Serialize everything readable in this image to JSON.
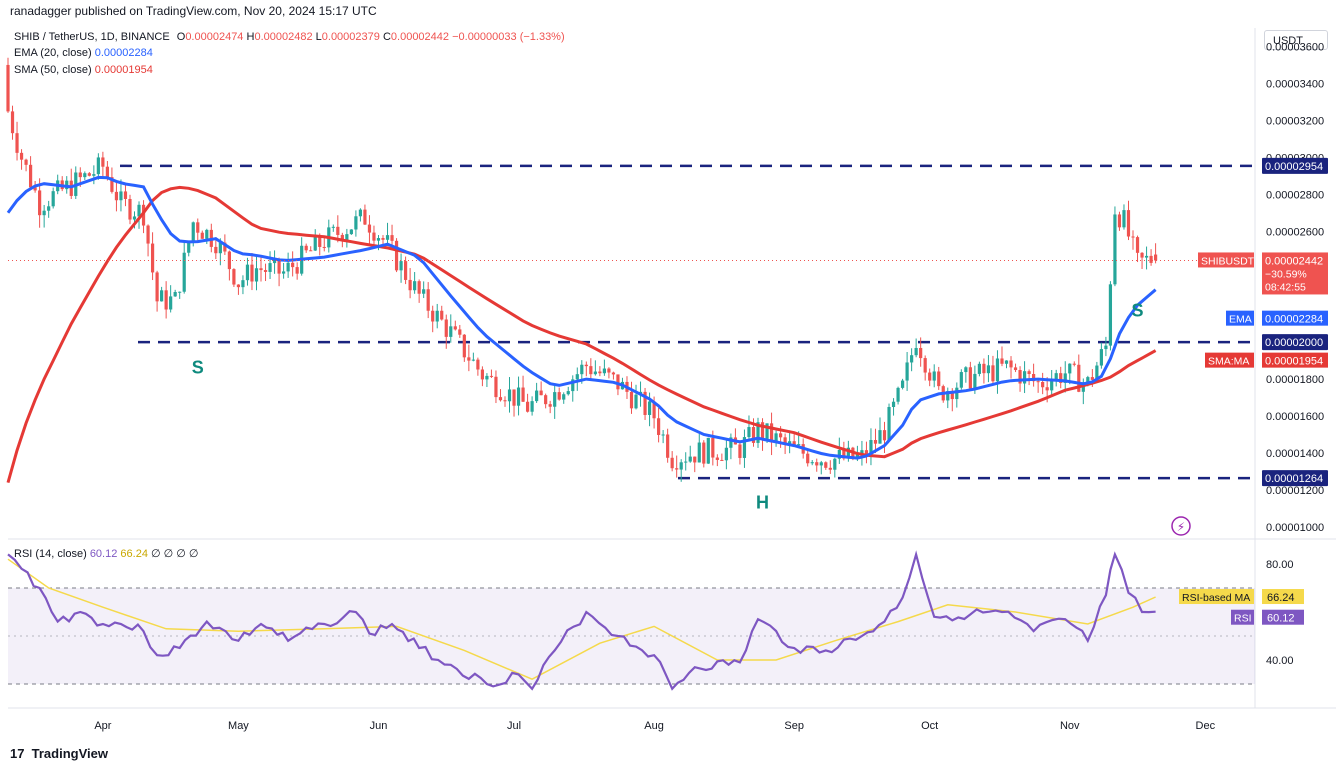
{
  "header": {
    "text": "ranadagger published on TradingView.com, Nov 20, 2024 15:17 UTC"
  },
  "legend": {
    "symbol": "SHIB / TetherUS, 1D, BINANCE",
    "o_label": "O",
    "o_val": "0.00002474",
    "h_label": "H",
    "h_val": "0.00002482",
    "l_label": "L",
    "l_val": "0.00002379",
    "c_label": "C",
    "c_val": "0.00002442",
    "chg": "−0.00000033 (−1.33%)",
    "ema_label": "EMA (20, close)",
    "ema_val": "0.00002284",
    "sma_label": "SMA (50, close)",
    "sma_val": "0.00001954",
    "rsi_label": "RSI (14, close)",
    "rsi_val": "60.12",
    "rsi_ma_val": "66.24",
    "rsi_extra": "∅ ∅ ∅ ∅"
  },
  "currency_button": "USDT",
  "footer": {
    "brand": "TradingView",
    "logo": "17"
  },
  "colors": {
    "up": "#26a69a",
    "down": "#ef5350",
    "ema": "#2962ff",
    "sma": "#e53935",
    "rsi": "#7e57c2",
    "rsi_ma": "#f5d94b",
    "level": "#1a237e"
  },
  "chart_data": {
    "type": "candlestick",
    "price_axis": {
      "ticks": [
        "0.00003600",
        "0.00003400",
        "0.00003200",
        "0.00003000",
        "0.00002800",
        "0.00002600",
        "0.00001800",
        "0.00001600",
        "0.00001400",
        "0.00001200",
        "0.00001000"
      ],
      "range": [
        9.4e-06,
        3.7e-05
      ]
    },
    "time_axis": {
      "ticks": [
        "Apr",
        "May",
        "Jun",
        "Jul",
        "Aug",
        "Sep",
        "Oct",
        "Nov",
        "Dec"
      ],
      "range": [
        "2024-03-11",
        "2024-12-12"
      ]
    },
    "horizontal_levels": [
      {
        "value": 2.954e-05,
        "label": "0.00002954"
      },
      {
        "value": 2e-05,
        "label": "0.00002000"
      },
      {
        "value": 1.264e-05,
        "label": "0.00001264"
      }
    ],
    "price_tags": {
      "symbol": "SHIBUSDT",
      "last": "0.00002442",
      "change": "−30.59%",
      "countdown": "08:42:55",
      "ema": "EMA",
      "ema_val": "0.00002284",
      "sma": "SMA:MA",
      "sma_val": "0.00001954"
    },
    "annotations": [
      {
        "text": "S",
        "date": "2024-04-22",
        "price": 1.83e-05
      },
      {
        "text": "H",
        "date": "2024-08-25",
        "price": 1.1e-05
      },
      {
        "text": "S",
        "date": "2024-11-16",
        "price": 2.14e-05
      }
    ],
    "anchors": [
      [
        "2024-03-11",
        35,
        30,
        "ema",
        27.0,
        "sma",
        12.4
      ],
      [
        "2024-03-14",
        33,
        27,
        "ema",
        28.0,
        "sma",
        15.0
      ],
      [
        "2024-03-18",
        30,
        25,
        "ema",
        28.6,
        "sma",
        17.5
      ],
      [
        "2024-03-25",
        29,
        28,
        "ema",
        28.4,
        "sma",
        21.0
      ],
      [
        "2024-04-01",
        30,
        29,
        "ema",
        29.0,
        "sma",
        24.0
      ],
      [
        "2024-04-05",
        27,
        28,
        "ema",
        28.6,
        "sma",
        25.5
      ],
      [
        "2024-04-10",
        26.5,
        27.5,
        "ema",
        28.4,
        "sma",
        27.0
      ],
      [
        "2024-04-13",
        21.5,
        23,
        "ema",
        27.0,
        "sma",
        28.0
      ],
      [
        "2024-04-17",
        22,
        22.5,
        "ema",
        25.5,
        "sma",
        28.4
      ],
      [
        "2024-04-21",
        26,
        27,
        "ema",
        25.4,
        "sma",
        28.3
      ],
      [
        "2024-04-26",
        25,
        26,
        "ema",
        25.6,
        "sma",
        27.8
      ],
      [
        "2024-05-01",
        22.5,
        24,
        "ema",
        24.8,
        "sma",
        26.9
      ],
      [
        "2024-05-05",
        23,
        25,
        "ema",
        24.7,
        "sma",
        26.2
      ],
      [
        "2024-05-11",
        23.5,
        24,
        "ema",
        24.4,
        "sma",
        25.9
      ],
      [
        "2024-05-20",
        25,
        26,
        "ema",
        24.6,
        "sma",
        25.7
      ],
      [
        "2024-05-29",
        27.5,
        26,
        "ema",
        25.0,
        "sma",
        25.3
      ],
      [
        "2024-06-03",
        25,
        25.5,
        "ema",
        25.3,
        "sma",
        25.1
      ],
      [
        "2024-06-10",
        22,
        23,
        "ema",
        24.6,
        "sma",
        24.7
      ],
      [
        "2024-06-17",
        20,
        21,
        "ema",
        22.5,
        "sma",
        23.6
      ],
      [
        "2024-06-24",
        18,
        18.5,
        "ema",
        20.5,
        "sma",
        22.5
      ],
      [
        "2024-07-04",
        16,
        17,
        "ema",
        18.5,
        "sma",
        21.0
      ],
      [
        "2024-07-10",
        17,
        17.5,
        "ema",
        17.6,
        "sma",
        20.4
      ],
      [
        "2024-07-17",
        19,
        18.5,
        "ema",
        18.0,
        "sma",
        19.9
      ],
      [
        "2024-07-24",
        18,
        17.5,
        "ema",
        17.8,
        "sma",
        19.0
      ],
      [
        "2024-08-01",
        16.5,
        15.5,
        "ema",
        16.8,
        "sma",
        17.8
      ],
      [
        "2024-08-05",
        13.5,
        14,
        "ema",
        15.8,
        "sma",
        17.3
      ],
      [
        "2024-08-12",
        14,
        14.2,
        "ema",
        15.0,
        "sma",
        16.5
      ],
      [
        "2024-08-20",
        14,
        14.5,
        "ema",
        14.6,
        "sma",
        15.8
      ],
      [
        "2024-08-24",
        15.5,
        15,
        "ema",
        14.8,
        "sma",
        15.5
      ],
      [
        "2024-09-01",
        14,
        14.3,
        "ema",
        14.4,
        "sma",
        15.1
      ],
      [
        "2024-09-08",
        13.5,
        13.8,
        "ema",
        13.9,
        "sma",
        14.5
      ],
      [
        "2024-09-16",
        13.5,
        14,
        "ema",
        13.7,
        "sma",
        13.9
      ],
      [
        "2024-09-21",
        15,
        15.5,
        "ema",
        14.4,
        "sma",
        13.8
      ],
      [
        "2024-09-25",
        17,
        18,
        "ema",
        15.5,
        "sma",
        14.2
      ],
      [
        "2024-09-28",
        20.5,
        20,
        "ema",
        16.8,
        "sma",
        14.7
      ],
      [
        "2024-10-03",
        17.5,
        17,
        "ema",
        17.2,
        "sma",
        15.1
      ],
      [
        "2024-10-10",
        18,
        18.2,
        "ema",
        17.4,
        "sma",
        15.6
      ],
      [
        "2024-10-18",
        18.5,
        18.8,
        "ema",
        17.9,
        "sma",
        16.2
      ],
      [
        "2024-10-25",
        18,
        17.5,
        "ema",
        18.0,
        "sma",
        16.8
      ],
      [
        "2024-10-31",
        18.5,
        18.2,
        "ema",
        17.9,
        "sma",
        17.4
      ],
      [
        "2024-11-05",
        17.5,
        18,
        "ema",
        17.7,
        "sma",
        17.7
      ],
      [
        "2024-11-09",
        19,
        20.5,
        "ema",
        18.3,
        "sma",
        18.0
      ],
      [
        "2024-11-11",
        26,
        28.5,
        "ema",
        19.9,
        "sma",
        18.2
      ],
      [
        "2024-11-13",
        27,
        26,
        "ema",
        21.0,
        "sma",
        18.6
      ],
      [
        "2024-11-16",
        24.5,
        24,
        "ema",
        22.0,
        "sma",
        19.0
      ],
      [
        "2024-11-20",
        24.74,
        24.42,
        "ema",
        22.84,
        "sma",
        19.54
      ]
    ],
    "rsi": {
      "range": [
        20,
        90
      ],
      "ticks": [
        "80.00",
        "40.00"
      ],
      "band": [
        30,
        70
      ],
      "points": [
        [
          "2024-03-11",
          84
        ],
        [
          "2024-03-14",
          78
        ],
        [
          "2024-03-18",
          70
        ],
        [
          "2024-03-22",
          56
        ],
        [
          "2024-03-27",
          60
        ],
        [
          "2024-04-01",
          55
        ],
        [
          "2024-04-05",
          55
        ],
        [
          "2024-04-10",
          52
        ],
        [
          "2024-04-13",
          42
        ],
        [
          "2024-04-18",
          45
        ],
        [
          "2024-04-24",
          56
        ],
        [
          "2024-05-01",
          48
        ],
        [
          "2024-05-06",
          55
        ],
        [
          "2024-05-12",
          48
        ],
        [
          "2024-05-20",
          55
        ],
        [
          "2024-05-27",
          60
        ],
        [
          "2024-05-30",
          51
        ],
        [
          "2024-06-04",
          55
        ],
        [
          "2024-06-10",
          45
        ],
        [
          "2024-06-17",
          38
        ],
        [
          "2024-06-25",
          30
        ],
        [
          "2024-07-02",
          34
        ],
        [
          "2024-07-05",
          28
        ],
        [
          "2024-07-10",
          44
        ],
        [
          "2024-07-17",
          60
        ],
        [
          "2024-07-24",
          50
        ],
        [
          "2024-08-01",
          42
        ],
        [
          "2024-08-05",
          28
        ],
        [
          "2024-08-10",
          37
        ],
        [
          "2024-08-20",
          39
        ],
        [
          "2024-08-24",
          57
        ],
        [
          "2024-09-01",
          45
        ],
        [
          "2024-09-08",
          44
        ],
        [
          "2024-09-16",
          50
        ],
        [
          "2024-09-21",
          56
        ],
        [
          "2024-09-25",
          66
        ],
        [
          "2024-09-28",
          84
        ],
        [
          "2024-10-02",
          58
        ],
        [
          "2024-10-10",
          59
        ],
        [
          "2024-10-17",
          60
        ],
        [
          "2024-10-24",
          52
        ],
        [
          "2024-10-31",
          57
        ],
        [
          "2024-11-05",
          48
        ],
        [
          "2024-11-09",
          67
        ],
        [
          "2024-11-11",
          84
        ],
        [
          "2024-11-14",
          68
        ],
        [
          "2024-11-17",
          60
        ],
        [
          "2024-11-20",
          60.12
        ]
      ],
      "ma_points": [
        [
          "2024-03-11",
          82
        ],
        [
          "2024-03-20",
          70
        ],
        [
          "2024-04-01",
          62
        ],
        [
          "2024-04-15",
          53
        ],
        [
          "2024-05-01",
          52
        ],
        [
          "2024-05-20",
          53
        ],
        [
          "2024-06-05",
          54
        ],
        [
          "2024-06-20",
          44
        ],
        [
          "2024-07-05",
          32
        ],
        [
          "2024-07-20",
          47
        ],
        [
          "2024-08-01",
          54
        ],
        [
          "2024-08-15",
          40
        ],
        [
          "2024-08-28",
          40
        ],
        [
          "2024-09-10",
          48
        ],
        [
          "2024-09-24",
          56
        ],
        [
          "2024-10-05",
          63
        ],
        [
          "2024-10-20",
          60
        ],
        [
          "2024-11-05",
          55
        ],
        [
          "2024-11-15",
          62
        ],
        [
          "2024-11-20",
          66.24
        ]
      ],
      "tags": {
        "ma_label": "RSI-based MA",
        "ma_val": "66.24",
        "rsi_label": "RSI",
        "rsi_val": "60.12"
      }
    }
  }
}
